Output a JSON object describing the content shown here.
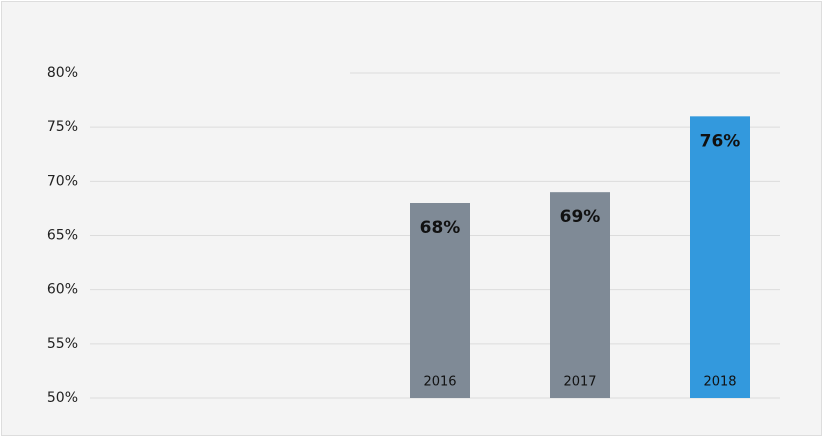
{
  "chart_data": {
    "type": "bar",
    "categories": [
      "2016",
      "2017",
      "2018"
    ],
    "values": [
      68,
      69,
      76
    ],
    "value_labels": [
      "68%",
      "69%",
      "76%"
    ],
    "colors": [
      "#7f8a96",
      "#7f8a96",
      "#3399dd"
    ],
    "ylim": [
      50,
      80
    ],
    "yticks": [
      {
        "value": 50,
        "label": "50%"
      },
      {
        "value": 55,
        "label": "55%"
      },
      {
        "value": 60,
        "label": "60%"
      },
      {
        "value": 65,
        "label": "65%"
      },
      {
        "value": 70,
        "label": "70%"
      },
      {
        "value": 75,
        "label": "75%"
      },
      {
        "value": 80,
        "label": "80%"
      }
    ],
    "grid": true
  }
}
